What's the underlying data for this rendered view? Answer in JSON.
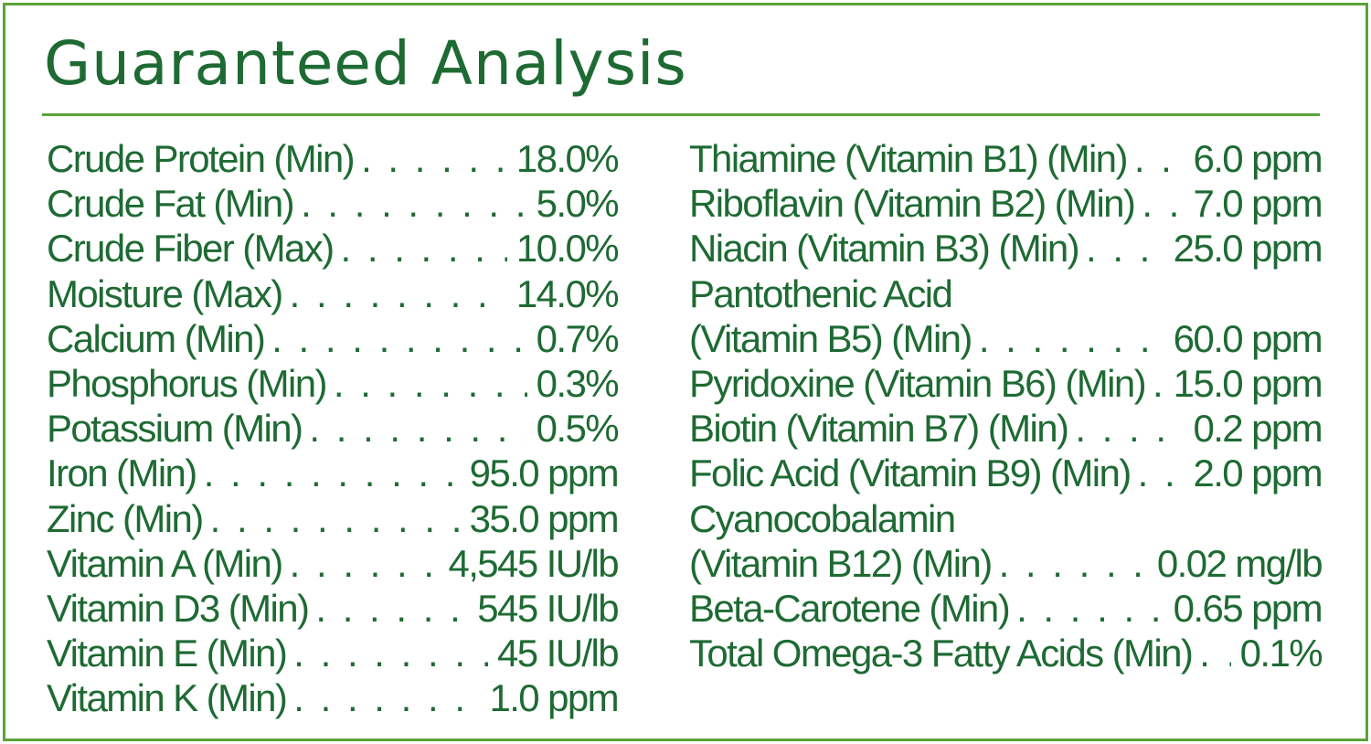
{
  "title": "Guaranteed Analysis",
  "left_items": [
    {
      "name": "Crude Protein (Min)",
      "value": "18.0%"
    },
    {
      "name": "Crude Fat (Min)",
      "value": "5.0%"
    },
    {
      "name": "Crude Fiber (Max)",
      "value": "10.0%"
    },
    {
      "name": "Moisture (Max)",
      "value": "14.0%"
    },
    {
      "name": "Calcium (Min)",
      "value": "0.7%"
    },
    {
      "name": "Phosphorus (Min)",
      "value": "0.3%"
    },
    {
      "name": "Potassium (Min)",
      "value": "0.5%"
    },
    {
      "name": "Iron (Min)",
      "value": "95.0 ppm"
    },
    {
      "name": "Zinc (Min)",
      "value": "35.0 ppm"
    },
    {
      "name": "Vitamin A (Min)",
      "value": "4,545 IU/lb"
    },
    {
      "name": "Vitamin D3 (Min)",
      "value": "545 IU/lb"
    },
    {
      "name": "Vitamin E (Min)",
      "value": "45 IU/lb"
    },
    {
      "name": "Vitamin K (Min)",
      "value": "1.0 ppm"
    }
  ],
  "right_items": [
    {
      "name": "Thiamine (Vitamin B1) (Min)",
      "value": "6.0 ppm"
    },
    {
      "name": "Riboflavin (Vitamin B2) (Min)",
      "value": "7.0 ppm"
    },
    {
      "name": "Niacin (Vitamin B3) (Min)",
      "value": "25.0 ppm"
    },
    {
      "name": "Pantothenic Acid",
      "value": ""
    },
    {
      "name": "(Vitamin B5) (Min)",
      "value": "60.0 ppm"
    },
    {
      "name": "Pyridoxine (Vitamin B6) (Min)",
      "value": "15.0 ppm"
    },
    {
      "name": "Biotin (Vitamin B7) (Min)",
      "value": "0.2 ppm"
    },
    {
      "name": "Folic Acid (Vitamin B9) (Min)",
      "value": "2.0 ppm"
    },
    {
      "name": "Cyanocobalamin",
      "value": ""
    },
    {
      "name": "(Vitamin B12) (Min)",
      "value": "0.02 mg/lb"
    },
    {
      "name": "Beta-Carotene (Min)",
      "value": "0.65 ppm"
    },
    {
      "name": "Total Omega-3 Fatty Acids (Min)",
      "value": "0.1%"
    }
  ],
  "colors": {
    "text": "#1e6a33",
    "border": "#5aa43a",
    "background": "#ffffff"
  }
}
